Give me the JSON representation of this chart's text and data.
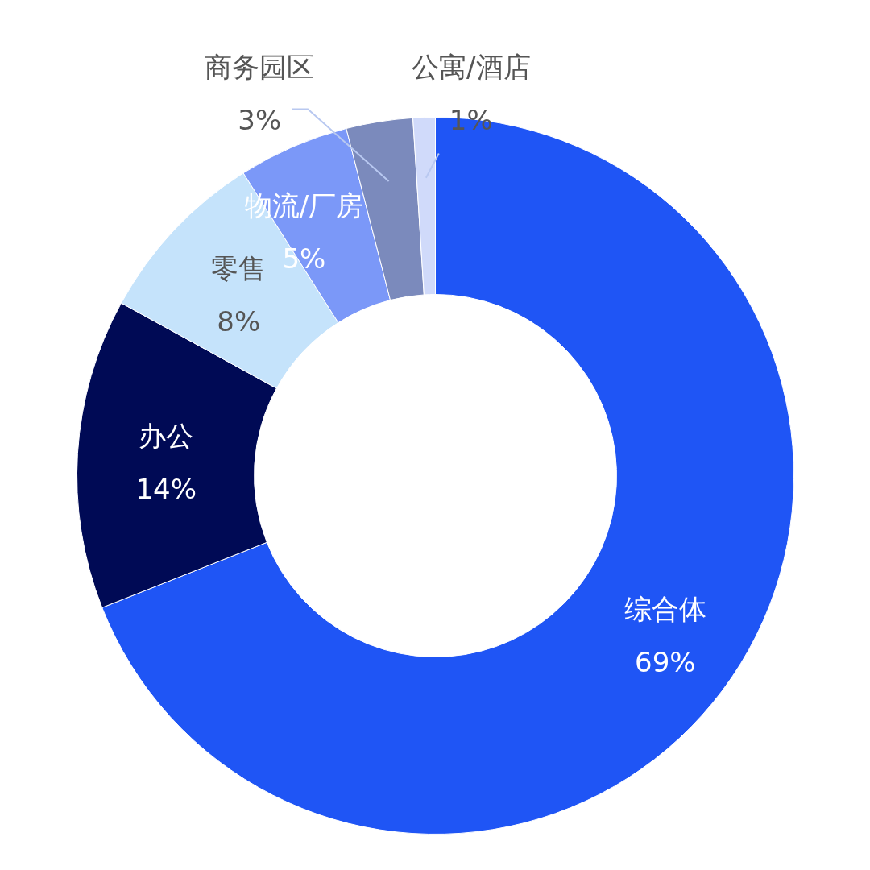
{
  "chart_data": {
    "type": "donut",
    "categories": [
      "综合体",
      "办公",
      "零售",
      "物流/厂房",
      "商务园区",
      "公寓/酒店"
    ],
    "values": [
      69,
      14,
      8,
      5,
      3,
      1
    ],
    "value_labels": [
      "69%",
      "14%",
      "8%",
      "5%",
      "3%",
      "1%"
    ],
    "colors": [
      "#1f55f5",
      "#000a55",
      "#c5e3fb",
      "#7b98f8",
      "#7b8abc",
      "#d0dafa"
    ]
  }
}
